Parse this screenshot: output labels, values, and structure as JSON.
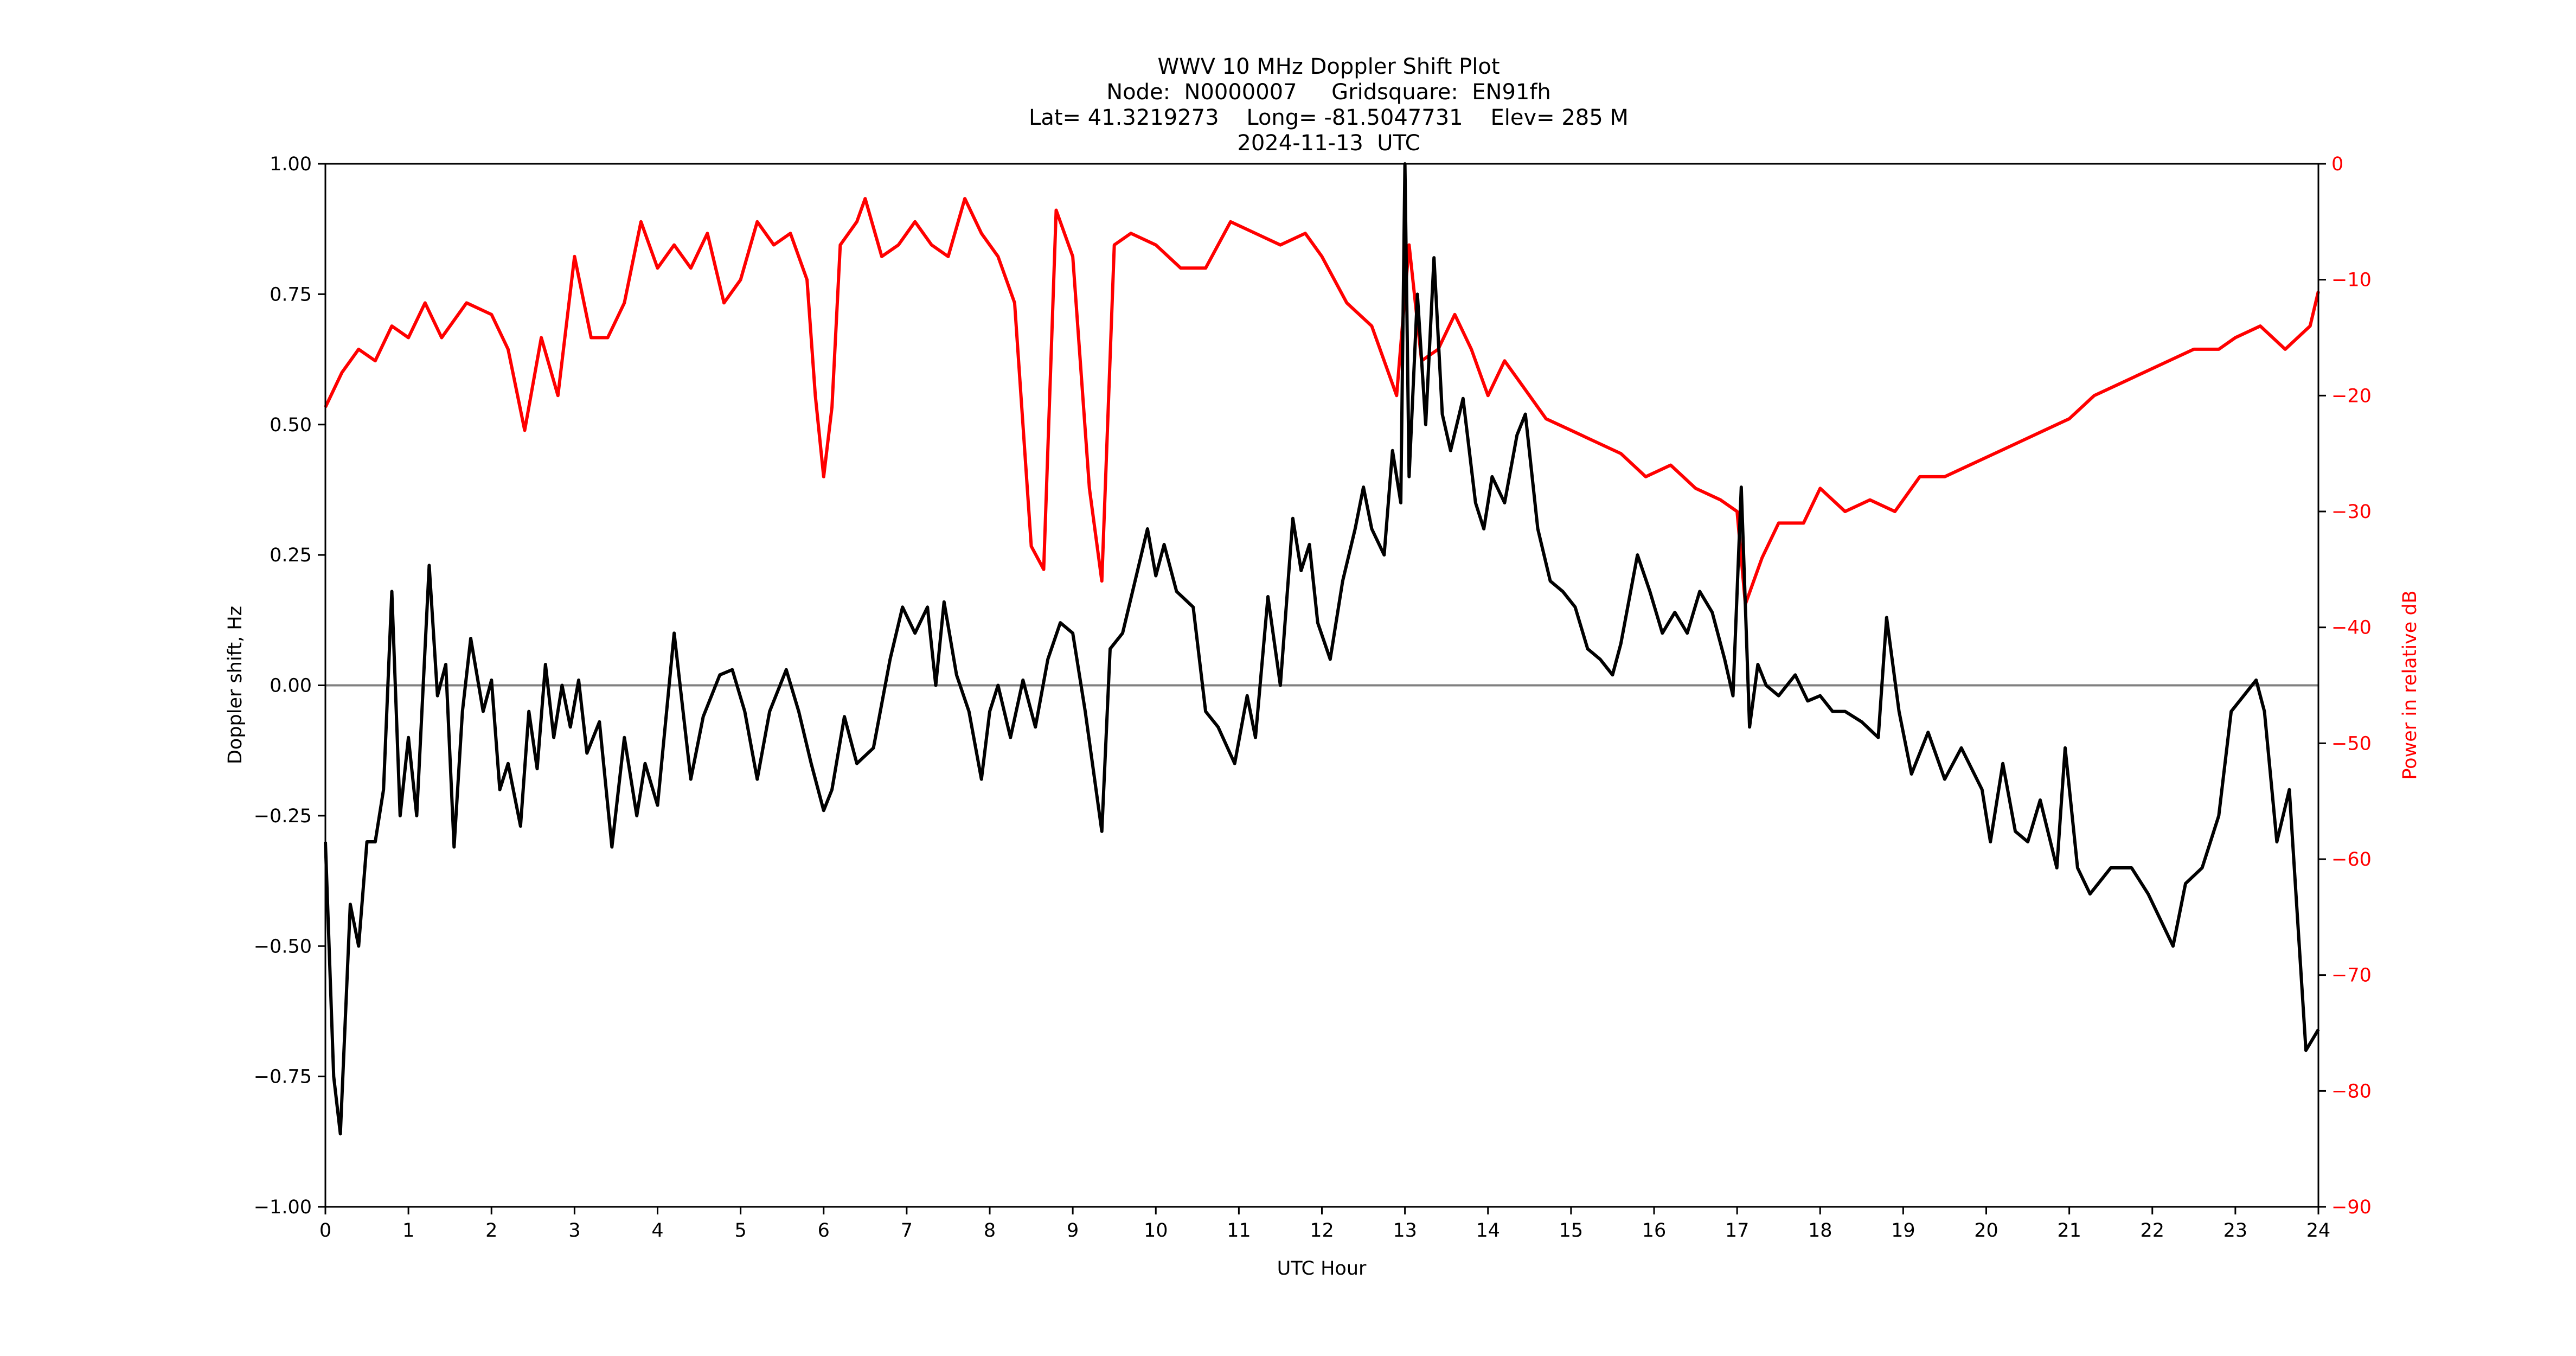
{
  "title": {
    "line1": "WWV 10 MHz Doppler Shift Plot",
    "line2": "Node:  N0000007     Gridsquare:  EN91fh",
    "line3": "Lat= 41.3219273    Long= -81.5047731    Elev= 285 M",
    "line4": "2024-11-13  UTC"
  },
  "colors": {
    "doppler": "#000000",
    "power": "#ff0000",
    "zero_line": "#808080",
    "axis": "#000000"
  },
  "chart_data": {
    "type": "line",
    "title": "WWV 10 MHz Doppler Shift Plot",
    "subtitle": [
      "Node:  N0000007     Gridsquare:  EN91fh",
      "Lat= 41.3219273    Long= -81.5047731    Elev= 285 M",
      "2024-11-13  UTC"
    ],
    "xlabel": "UTC Hour",
    "ylabel": "Doppler shift, Hz",
    "ylabel_right": "Power in relative dB",
    "xlim": [
      0,
      24
    ],
    "ylim": [
      -1.0,
      1.0
    ],
    "ylim_right": [
      -90,
      0
    ],
    "xticks": [
      0,
      1,
      2,
      3,
      4,
      5,
      6,
      7,
      8,
      9,
      10,
      11,
      12,
      13,
      14,
      15,
      16,
      17,
      18,
      19,
      20,
      21,
      22,
      23,
      24
    ],
    "yticks": [
      "-1.00",
      "-0.75",
      "-0.50",
      "-0.25",
      "0.00",
      "0.25",
      "0.50",
      "0.75",
      "1.00"
    ],
    "yticks_right": [
      "-90",
      "-80",
      "-70",
      "-60",
      "-50",
      "-40",
      "-30",
      "-20",
      "-10",
      "0"
    ],
    "grid": false,
    "legend": null,
    "zero_line": 0.0,
    "series": [
      {
        "name": "Doppler shift, Hz",
        "axis": "left",
        "color": "#000000",
        "points": [
          [
            0,
            -0.3
          ],
          [
            0.1,
            -0.75
          ],
          [
            0.18,
            -0.86
          ],
          [
            0.3,
            -0.42
          ],
          [
            0.4,
            -0.5
          ],
          [
            0.5,
            -0.3
          ],
          [
            0.6,
            -0.3
          ],
          [
            0.7,
            -0.2
          ],
          [
            0.8,
            0.18
          ],
          [
            0.9,
            -0.25
          ],
          [
            1.0,
            -0.1
          ],
          [
            1.1,
            -0.25
          ],
          [
            1.25,
            0.23
          ],
          [
            1.35,
            -0.02
          ],
          [
            1.45,
            0.04
          ],
          [
            1.55,
            -0.31
          ],
          [
            1.65,
            -0.05
          ],
          [
            1.75,
            0.09
          ],
          [
            1.9,
            -0.05
          ],
          [
            2.0,
            0.01
          ],
          [
            2.1,
            -0.2
          ],
          [
            2.2,
            -0.15
          ],
          [
            2.35,
            -0.27
          ],
          [
            2.45,
            -0.05
          ],
          [
            2.55,
            -0.16
          ],
          [
            2.65,
            0.04
          ],
          [
            2.75,
            -0.1
          ],
          [
            2.85,
            0.0
          ],
          [
            2.95,
            -0.08
          ],
          [
            3.05,
            0.01
          ],
          [
            3.15,
            -0.13
          ],
          [
            3.3,
            -0.07
          ],
          [
            3.45,
            -0.31
          ],
          [
            3.6,
            -0.1
          ],
          [
            3.75,
            -0.25
          ],
          [
            3.85,
            -0.15
          ],
          [
            4.0,
            -0.23
          ],
          [
            4.2,
            0.1
          ],
          [
            4.4,
            -0.18
          ],
          [
            4.55,
            -0.06
          ],
          [
            4.75,
            0.02
          ],
          [
            4.9,
            0.03
          ],
          [
            5.05,
            -0.05
          ],
          [
            5.2,
            -0.18
          ],
          [
            5.35,
            -0.05
          ],
          [
            5.55,
            0.03
          ],
          [
            5.7,
            -0.05
          ],
          [
            5.85,
            -0.15
          ],
          [
            6.0,
            -0.24
          ],
          [
            6.1,
            -0.2
          ],
          [
            6.25,
            -0.06
          ],
          [
            6.4,
            -0.15
          ],
          [
            6.6,
            -0.12
          ],
          [
            6.8,
            0.05
          ],
          [
            6.95,
            0.15
          ],
          [
            7.1,
            0.1
          ],
          [
            7.25,
            0.15
          ],
          [
            7.35,
            0.0
          ],
          [
            7.45,
            0.16
          ],
          [
            7.6,
            0.02
          ],
          [
            7.75,
            -0.05
          ],
          [
            7.9,
            -0.18
          ],
          [
            8.0,
            -0.05
          ],
          [
            8.1,
            0.0
          ],
          [
            8.25,
            -0.1
          ],
          [
            8.4,
            0.01
          ],
          [
            8.55,
            -0.08
          ],
          [
            8.7,
            0.05
          ],
          [
            8.85,
            0.12
          ],
          [
            9.0,
            0.1
          ],
          [
            9.15,
            -0.05
          ],
          [
            9.35,
            -0.28
          ],
          [
            9.45,
            0.07
          ],
          [
            9.6,
            0.1
          ],
          [
            9.75,
            0.2
          ],
          [
            9.9,
            0.3
          ],
          [
            10.0,
            0.21
          ],
          [
            10.1,
            0.27
          ],
          [
            10.25,
            0.18
          ],
          [
            10.45,
            0.15
          ],
          [
            10.6,
            -0.05
          ],
          [
            10.75,
            -0.08
          ],
          [
            10.95,
            -0.15
          ],
          [
            11.1,
            -0.02
          ],
          [
            11.2,
            -0.1
          ],
          [
            11.35,
            0.17
          ],
          [
            11.5,
            0.0
          ],
          [
            11.65,
            0.32
          ],
          [
            11.75,
            0.22
          ],
          [
            11.85,
            0.27
          ],
          [
            11.95,
            0.12
          ],
          [
            12.1,
            0.05
          ],
          [
            12.25,
            0.2
          ],
          [
            12.4,
            0.3
          ],
          [
            12.5,
            0.38
          ],
          [
            12.6,
            0.3
          ],
          [
            12.75,
            0.25
          ],
          [
            12.85,
            0.45
          ],
          [
            12.95,
            0.35
          ],
          [
            13.0,
            1.0
          ],
          [
            13.05,
            0.4
          ],
          [
            13.15,
            0.75
          ],
          [
            13.25,
            0.5
          ],
          [
            13.35,
            0.82
          ],
          [
            13.45,
            0.52
          ],
          [
            13.55,
            0.45
          ],
          [
            13.7,
            0.55
          ],
          [
            13.85,
            0.35
          ],
          [
            13.95,
            0.3
          ],
          [
            14.05,
            0.4
          ],
          [
            14.2,
            0.35
          ],
          [
            14.35,
            0.48
          ],
          [
            14.45,
            0.52
          ],
          [
            14.6,
            0.3
          ],
          [
            14.75,
            0.2
          ],
          [
            14.9,
            0.18
          ],
          [
            15.05,
            0.15
          ],
          [
            15.2,
            0.07
          ],
          [
            15.35,
            0.05
          ],
          [
            15.5,
            0.02
          ],
          [
            15.6,
            0.08
          ],
          [
            15.8,
            0.25
          ],
          [
            15.95,
            0.18
          ],
          [
            16.1,
            0.1
          ],
          [
            16.25,
            0.14
          ],
          [
            16.4,
            0.1
          ],
          [
            16.55,
            0.18
          ],
          [
            16.7,
            0.14
          ],
          [
            16.85,
            0.05
          ],
          [
            16.95,
            -0.02
          ],
          [
            17.05,
            0.38
          ],
          [
            17.15,
            -0.08
          ],
          [
            17.25,
            0.04
          ],
          [
            17.35,
            0.0
          ],
          [
            17.5,
            -0.02
          ],
          [
            17.7,
            0.02
          ],
          [
            17.85,
            -0.03
          ],
          [
            18.0,
            -0.02
          ],
          [
            18.15,
            -0.05
          ],
          [
            18.3,
            -0.05
          ],
          [
            18.5,
            -0.07
          ],
          [
            18.7,
            -0.1
          ],
          [
            18.8,
            0.13
          ],
          [
            18.95,
            -0.05
          ],
          [
            19.1,
            -0.17
          ],
          [
            19.3,
            -0.09
          ],
          [
            19.5,
            -0.18
          ],
          [
            19.7,
            -0.12
          ],
          [
            19.95,
            -0.2
          ],
          [
            20.05,
            -0.3
          ],
          [
            20.2,
            -0.15
          ],
          [
            20.35,
            -0.28
          ],
          [
            20.5,
            -0.3
          ],
          [
            20.65,
            -0.22
          ],
          [
            20.85,
            -0.35
          ],
          [
            20.95,
            -0.12
          ],
          [
            21.1,
            -0.35
          ],
          [
            21.25,
            -0.4
          ],
          [
            21.5,
            -0.35
          ],
          [
            21.75,
            -0.35
          ],
          [
            21.95,
            -0.4
          ],
          [
            22.1,
            -0.45
          ],
          [
            22.25,
            -0.5
          ],
          [
            22.4,
            -0.38
          ],
          [
            22.6,
            -0.35
          ],
          [
            22.8,
            -0.25
          ],
          [
            22.95,
            -0.05
          ],
          [
            23.1,
            -0.02
          ],
          [
            23.25,
            0.01
          ],
          [
            23.35,
            -0.05
          ],
          [
            23.5,
            -0.3
          ],
          [
            23.65,
            -0.2
          ],
          [
            23.75,
            -0.45
          ],
          [
            23.85,
            -0.7
          ],
          [
            24.0,
            -0.66
          ]
        ]
      },
      {
        "name": "Power in relative dB",
        "axis": "right",
        "color": "#ff0000",
        "points": [
          [
            0,
            -21
          ],
          [
            0.2,
            -18
          ],
          [
            0.4,
            -16
          ],
          [
            0.6,
            -17
          ],
          [
            0.8,
            -14
          ],
          [
            1.0,
            -15
          ],
          [
            1.2,
            -12
          ],
          [
            1.4,
            -15
          ],
          [
            1.7,
            -12
          ],
          [
            2.0,
            -13
          ],
          [
            2.2,
            -16
          ],
          [
            2.4,
            -23
          ],
          [
            2.6,
            -15
          ],
          [
            2.8,
            -20
          ],
          [
            3.0,
            -8
          ],
          [
            3.2,
            -15
          ],
          [
            3.4,
            -15
          ],
          [
            3.6,
            -12
          ],
          [
            3.8,
            -5
          ],
          [
            4.0,
            -9
          ],
          [
            4.2,
            -7
          ],
          [
            4.4,
            -9
          ],
          [
            4.6,
            -6
          ],
          [
            4.8,
            -12
          ],
          [
            5.0,
            -10
          ],
          [
            5.2,
            -5
          ],
          [
            5.4,
            -7
          ],
          [
            5.6,
            -6
          ],
          [
            5.8,
            -10
          ],
          [
            5.9,
            -20
          ],
          [
            6.0,
            -27
          ],
          [
            6.1,
            -21
          ],
          [
            6.2,
            -7
          ],
          [
            6.4,
            -5
          ],
          [
            6.5,
            -3
          ],
          [
            6.7,
            -8
          ],
          [
            6.9,
            -7
          ],
          [
            7.1,
            -5
          ],
          [
            7.3,
            -7
          ],
          [
            7.5,
            -8
          ],
          [
            7.7,
            -3
          ],
          [
            7.9,
            -6
          ],
          [
            8.1,
            -8
          ],
          [
            8.3,
            -12
          ],
          [
            8.5,
            -33
          ],
          [
            8.65,
            -35
          ],
          [
            8.8,
            -4
          ],
          [
            9.0,
            -8
          ],
          [
            9.2,
            -28
          ],
          [
            9.35,
            -36
          ],
          [
            9.5,
            -7
          ],
          [
            9.7,
            -6
          ],
          [
            10.0,
            -7
          ],
          [
            10.3,
            -9
          ],
          [
            10.6,
            -9
          ],
          [
            10.9,
            -5
          ],
          [
            11.2,
            -6
          ],
          [
            11.5,
            -7
          ],
          [
            11.8,
            -6
          ],
          [
            12.0,
            -8
          ],
          [
            12.3,
            -12
          ],
          [
            12.6,
            -14
          ],
          [
            12.9,
            -20
          ],
          [
            13.05,
            -7
          ],
          [
            13.2,
            -17
          ],
          [
            13.4,
            -16
          ],
          [
            13.6,
            -13
          ],
          [
            13.8,
            -16
          ],
          [
            14.0,
            -20
          ],
          [
            14.2,
            -17
          ],
          [
            14.5,
            -20
          ],
          [
            14.7,
            -22
          ],
          [
            15.0,
            -23
          ],
          [
            15.3,
            -24
          ],
          [
            15.6,
            -25
          ],
          [
            15.9,
            -27
          ],
          [
            16.2,
            -26
          ],
          [
            16.5,
            -28
          ],
          [
            16.8,
            -29
          ],
          [
            17.0,
            -30
          ],
          [
            17.1,
            -38
          ],
          [
            17.3,
            -34
          ],
          [
            17.5,
            -31
          ],
          [
            17.8,
            -31
          ],
          [
            18.0,
            -28
          ],
          [
            18.3,
            -30
          ],
          [
            18.6,
            -29
          ],
          [
            18.9,
            -30
          ],
          [
            19.2,
            -27
          ],
          [
            19.5,
            -27
          ],
          [
            19.8,
            -26
          ],
          [
            20.1,
            -25
          ],
          [
            20.4,
            -24
          ],
          [
            20.7,
            -23
          ],
          [
            21.0,
            -22
          ],
          [
            21.3,
            -20
          ],
          [
            21.6,
            -19
          ],
          [
            21.9,
            -18
          ],
          [
            22.2,
            -17
          ],
          [
            22.5,
            -16
          ],
          [
            22.8,
            -16
          ],
          [
            23.0,
            -15
          ],
          [
            23.3,
            -14
          ],
          [
            23.6,
            -16
          ],
          [
            23.9,
            -14
          ],
          [
            24.0,
            -11
          ]
        ]
      }
    ]
  }
}
